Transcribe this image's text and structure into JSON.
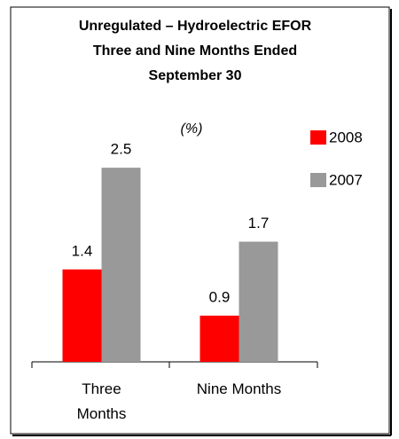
{
  "chart_data": {
    "type": "bar",
    "title": [
      "Unregulated  –  Hydroelectric EFOR",
      "Three and Nine Months Ended",
      "September 30"
    ],
    "subtitle": "(%)",
    "categories": [
      "Three Months",
      "Nine Months"
    ],
    "series": [
      {
        "name": "2008",
        "color": "#ff0000",
        "values": [
          1.4,
          0.9
        ]
      },
      {
        "name": "2007",
        "color": "#999999",
        "values": [
          2.5,
          1.7
        ]
      }
    ],
    "ylim": [
      0.4,
      3.0
    ],
    "legend": "right"
  }
}
